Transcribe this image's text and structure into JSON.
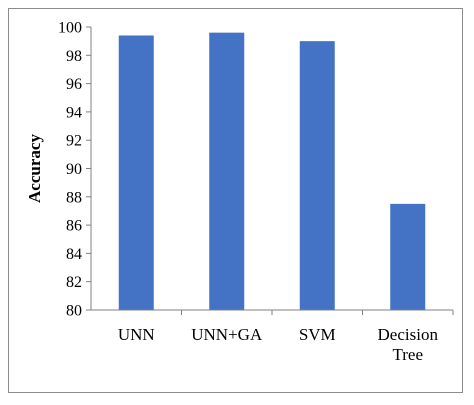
{
  "chart_data": {
    "type": "bar",
    "title": "",
    "xlabel": "",
    "ylabel": "Accuracy",
    "categories": [
      [
        "UNN"
      ],
      [
        "UNN+GA"
      ],
      [
        "SVM"
      ],
      [
        "Decision",
        "Tree"
      ]
    ],
    "values": [
      99.4,
      99.6,
      99.0,
      87.5
    ],
    "ylim": [
      80,
      100
    ],
    "yticks": [
      80,
      82,
      84,
      86,
      88,
      90,
      92,
      94,
      96,
      98,
      100
    ],
    "bar_color": "#4472c4",
    "axis_color": "#808080",
    "grid": false,
    "legend": "none"
  }
}
